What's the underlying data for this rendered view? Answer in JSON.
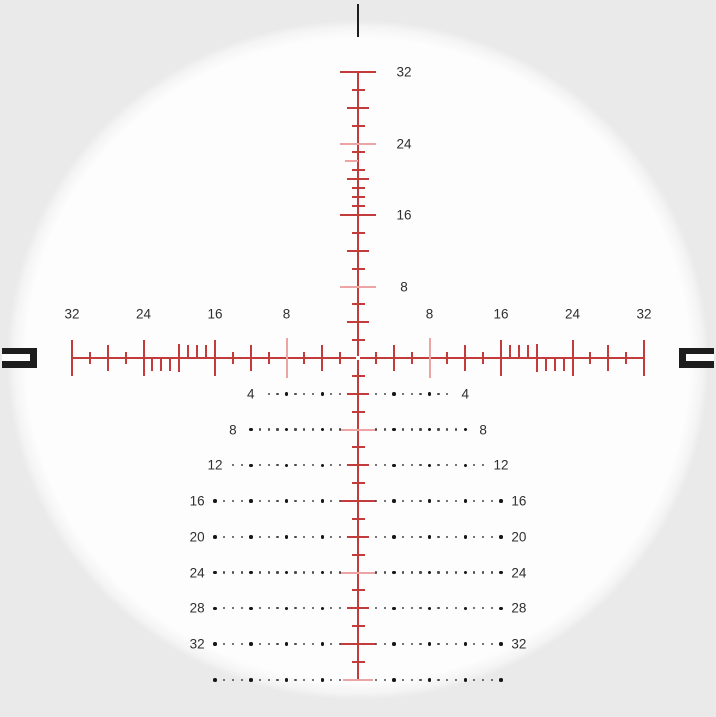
{
  "scope": {
    "background_color": "#eaeaea",
    "glass_color": "#fdfdfd",
    "reticle_color": "#c43b3b",
    "reticle_light_color": "#eca4a4",
    "marker_color": "#1d1d1d",
    "label_color": "#2f2f2f",
    "dot_color": "#4a4a4a",
    "dot_major_color": "#161616"
  },
  "reticle": {
    "horizontal_left_labels": [
      "32",
      "24",
      "16",
      "8"
    ],
    "horizontal_right_labels": [
      "8",
      "16",
      "24",
      "32"
    ],
    "vertical_labels": [
      "32",
      "24",
      "16",
      "8"
    ],
    "tree_rows": [
      {
        "label": "4",
        "extent": 10
      },
      {
        "label": "8",
        "extent": 12
      },
      {
        "label": "12",
        "extent": 14
      },
      {
        "label": "16",
        "extent": 16
      },
      {
        "label": "20",
        "extent": 16
      },
      {
        "label": "24",
        "extent": 16
      },
      {
        "label": "28",
        "extent": 16
      },
      {
        "label": "32",
        "extent": 16
      },
      {
        "label": "",
        "extent": 16
      }
    ]
  }
}
